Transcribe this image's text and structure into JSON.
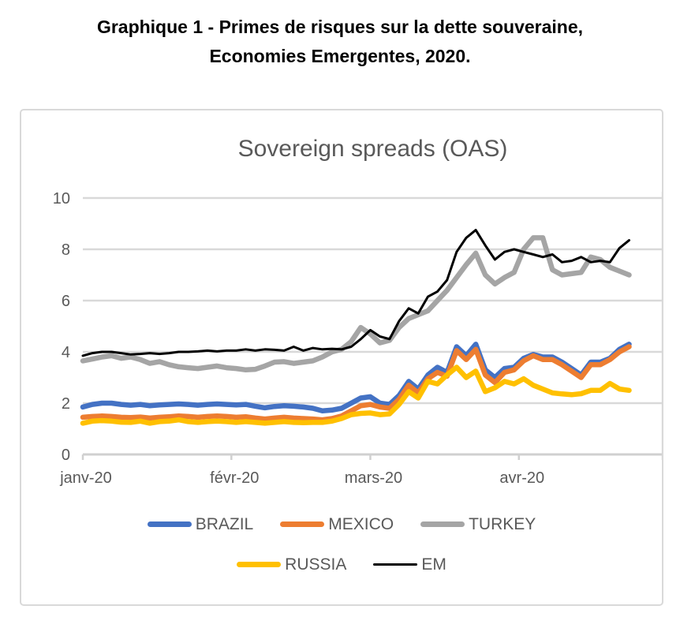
{
  "figure": {
    "title_line1": "Graphique 1 - Primes de risques sur la dette souveraine,",
    "title_line2": "Economies Emergentes, 2020."
  },
  "chart_data": {
    "type": "line",
    "title": "Sovereign spreads (OAS)",
    "x_axis": {
      "unit": "days since 2020-01-01",
      "domain": [
        0,
        121
      ],
      "tick_days": [
        0,
        31,
        60,
        91
      ],
      "tick_labels": [
        "janv-20",
        "févr-20",
        "mars-20",
        "avr-20"
      ]
    },
    "y_axis": {
      "ylim": [
        0,
        10
      ],
      "ticks": [
        0,
        2,
        4,
        6,
        8,
        10
      ],
      "tick_labels": [
        "0",
        "2",
        "4",
        "6",
        "8",
        "10"
      ]
    },
    "grid": "horizontal",
    "legend_position": "bottom",
    "x_days": [
      0,
      2,
      4,
      6,
      8,
      10,
      12,
      14,
      16,
      18,
      20,
      22,
      24,
      26,
      28,
      30,
      32,
      34,
      36,
      38,
      40,
      42,
      44,
      46,
      48,
      50,
      52,
      54,
      56,
      58,
      60,
      62,
      64,
      66,
      68,
      70,
      72,
      74,
      76,
      78,
      80,
      82,
      84,
      86,
      88,
      90,
      92,
      94,
      96,
      98,
      100,
      102,
      104,
      106,
      108,
      110,
      112,
      114
    ],
    "series": [
      {
        "name": "BRAZIL",
        "color": "#4472C4",
        "stroke_width": 6.5,
        "values": [
          1.85,
          1.95,
          2.0,
          2.0,
          1.95,
          1.92,
          1.95,
          1.9,
          1.93,
          1.95,
          1.97,
          1.95,
          1.92,
          1.95,
          1.97,
          1.95,
          1.93,
          1.95,
          1.88,
          1.82,
          1.87,
          1.9,
          1.88,
          1.85,
          1.8,
          1.7,
          1.73,
          1.8,
          2.0,
          2.2,
          2.25,
          2.0,
          1.95,
          2.3,
          2.85,
          2.55,
          3.1,
          3.4,
          3.2,
          4.2,
          3.85,
          4.3,
          3.3,
          3.0,
          3.35,
          3.4,
          3.75,
          3.9,
          3.8,
          3.8,
          3.6,
          3.35,
          3.1,
          3.6,
          3.6,
          3.75,
          4.1,
          4.3
        ]
      },
      {
        "name": "MEXICO",
        "color": "#ED7D31",
        "stroke_width": 6.5,
        "values": [
          1.45,
          1.48,
          1.5,
          1.48,
          1.45,
          1.44,
          1.46,
          1.42,
          1.45,
          1.47,
          1.5,
          1.48,
          1.45,
          1.48,
          1.5,
          1.48,
          1.45,
          1.47,
          1.42,
          1.38,
          1.42,
          1.45,
          1.42,
          1.4,
          1.38,
          1.35,
          1.4,
          1.5,
          1.7,
          1.9,
          1.95,
          1.85,
          1.8,
          2.15,
          2.7,
          2.4,
          2.95,
          3.2,
          3.05,
          4.05,
          3.7,
          4.1,
          3.1,
          2.8,
          3.2,
          3.3,
          3.65,
          3.85,
          3.7,
          3.7,
          3.5,
          3.25,
          3.0,
          3.5,
          3.5,
          3.7,
          4.0,
          4.2
        ]
      },
      {
        "name": "TURKEY",
        "color": "#A5A5A5",
        "stroke_width": 6.5,
        "values": [
          3.65,
          3.72,
          3.8,
          3.85,
          3.75,
          3.8,
          3.7,
          3.55,
          3.62,
          3.5,
          3.42,
          3.38,
          3.35,
          3.4,
          3.45,
          3.38,
          3.35,
          3.3,
          3.32,
          3.45,
          3.6,
          3.62,
          3.55,
          3.6,
          3.65,
          3.8,
          4.0,
          4.1,
          4.4,
          4.95,
          4.7,
          4.35,
          4.45,
          4.95,
          5.3,
          5.45,
          5.6,
          6.0,
          6.4,
          6.9,
          7.4,
          7.85,
          7.0,
          6.65,
          6.9,
          7.1,
          8.0,
          8.45,
          8.45,
          7.2,
          7.0,
          7.05,
          7.1,
          7.7,
          7.6,
          7.3,
          7.15,
          7.0
        ]
      },
      {
        "name": "RUSSIA",
        "color": "#FFC000",
        "stroke_width": 6.5,
        "values": [
          1.22,
          1.3,
          1.32,
          1.3,
          1.26,
          1.25,
          1.3,
          1.22,
          1.28,
          1.3,
          1.35,
          1.28,
          1.25,
          1.28,
          1.3,
          1.28,
          1.25,
          1.28,
          1.25,
          1.22,
          1.25,
          1.28,
          1.25,
          1.24,
          1.25,
          1.25,
          1.3,
          1.4,
          1.55,
          1.6,
          1.62,
          1.55,
          1.58,
          1.95,
          2.45,
          2.2,
          2.85,
          2.75,
          3.1,
          3.4,
          3.0,
          3.25,
          2.45,
          2.6,
          2.85,
          2.75,
          2.95,
          2.7,
          2.55,
          2.4,
          2.36,
          2.33,
          2.37,
          2.5,
          2.5,
          2.77,
          2.55,
          2.5
        ]
      },
      {
        "name": "EM",
        "color": "#000000",
        "stroke_width": 3,
        "values": [
          3.85,
          3.95,
          4.0,
          4.0,
          3.95,
          3.9,
          3.92,
          3.95,
          3.92,
          3.95,
          4.0,
          4.0,
          4.02,
          4.05,
          4.02,
          4.05,
          4.05,
          4.1,
          4.05,
          4.1,
          4.08,
          4.05,
          4.2,
          4.05,
          4.15,
          4.1,
          4.12,
          4.1,
          4.2,
          4.5,
          4.85,
          4.6,
          4.5,
          5.2,
          5.7,
          5.5,
          6.15,
          6.35,
          6.8,
          7.9,
          8.45,
          8.75,
          8.15,
          7.6,
          7.9,
          8.0,
          7.9,
          7.8,
          7.7,
          7.8,
          7.5,
          7.55,
          7.7,
          7.5,
          7.55,
          7.5,
          8.05,
          8.35
        ]
      }
    ]
  },
  "theme": {
    "grid_color": "#d9d9d9",
    "axis_color": "#d0d0d0",
    "tick_text_color": "#595959",
    "chart_title_color": "#595959",
    "box_border_color": "#d9d9d9"
  }
}
